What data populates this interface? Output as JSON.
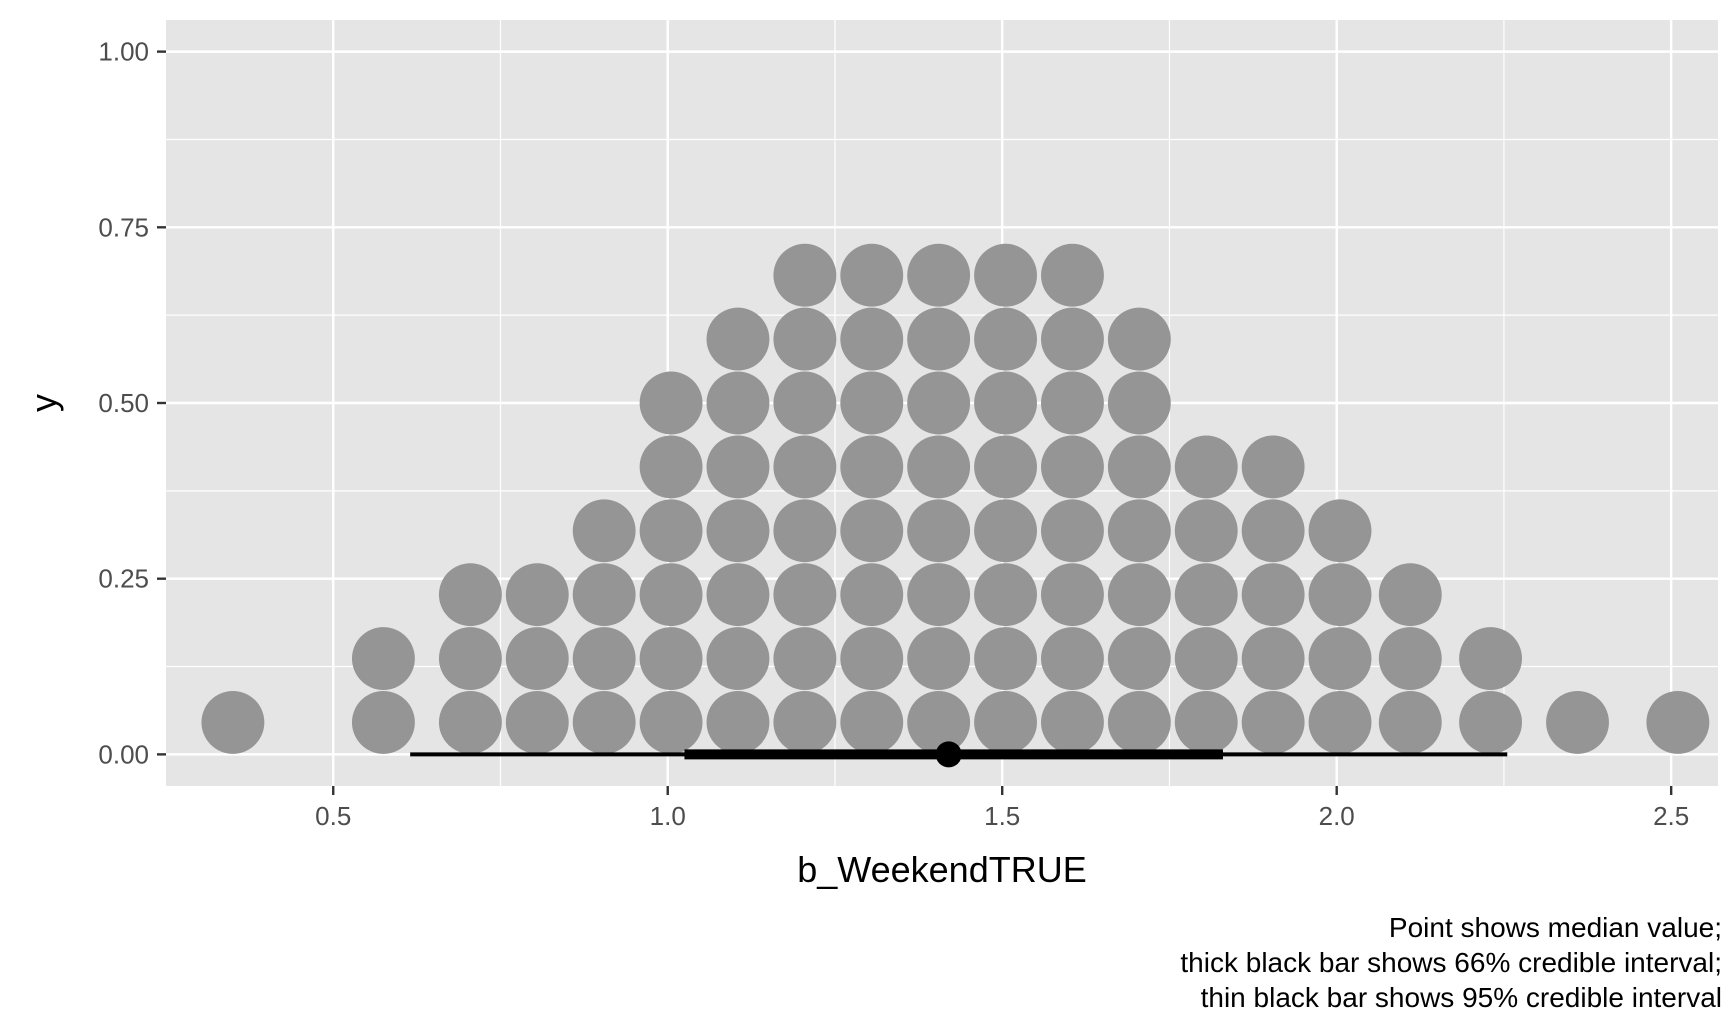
{
  "chart_data": {
    "type": "dotplot",
    "xlabel": "b_WeekendTRUE",
    "ylabel": "y",
    "xlim": [
      0.25,
      2.57
    ],
    "ylim": [
      -0.045,
      1.045
    ],
    "x_ticks": [
      0.5,
      1.0,
      1.5,
      2.0,
      2.5
    ],
    "x_tick_labels": [
      "0.5",
      "1.0",
      "1.5",
      "2.0",
      "2.5"
    ],
    "y_ticks": [
      0.0,
      0.25,
      0.5,
      0.75,
      1.0
    ],
    "y_tick_labels": [
      "0.00",
      "0.25",
      "0.50",
      "0.75",
      "1.00"
    ],
    "grid": true,
    "dot_step_y": 0.0909,
    "dot_base_y": 0.0455,
    "dot_stacks": [
      {
        "x": 0.35,
        "count": 1
      },
      {
        "x": 0.575,
        "count": 2
      },
      {
        "x": 0.705,
        "count": 3
      },
      {
        "x": 0.805,
        "count": 3
      },
      {
        "x": 0.905,
        "count": 4
      },
      {
        "x": 1.005,
        "count": 6
      },
      {
        "x": 1.105,
        "count": 7
      },
      {
        "x": 1.205,
        "count": 8
      },
      {
        "x": 1.305,
        "count": 8
      },
      {
        "x": 1.405,
        "count": 8
      },
      {
        "x": 1.505,
        "count": 8
      },
      {
        "x": 1.605,
        "count": 8
      },
      {
        "x": 1.705,
        "count": 7
      },
      {
        "x": 1.805,
        "count": 5
      },
      {
        "x": 1.905,
        "count": 5
      },
      {
        "x": 2.005,
        "count": 4
      },
      {
        "x": 2.11,
        "count": 3
      },
      {
        "x": 2.23,
        "count": 2
      },
      {
        "x": 2.36,
        "count": 1
      },
      {
        "x": 2.51,
        "count": 1
      }
    ],
    "median": 1.42,
    "interval_66": [
      1.025,
      1.83
    ],
    "interval_95": [
      0.615,
      2.255
    ],
    "caption": [
      "Point shows median value;",
      "thick black bar shows 66% credible interval;",
      "thin black bar shows 95% credible interval"
    ],
    "colors": {
      "panel_background": "#e5e5e5",
      "grid": "#ffffff",
      "dots": "#959595",
      "interval": "#000000"
    }
  }
}
